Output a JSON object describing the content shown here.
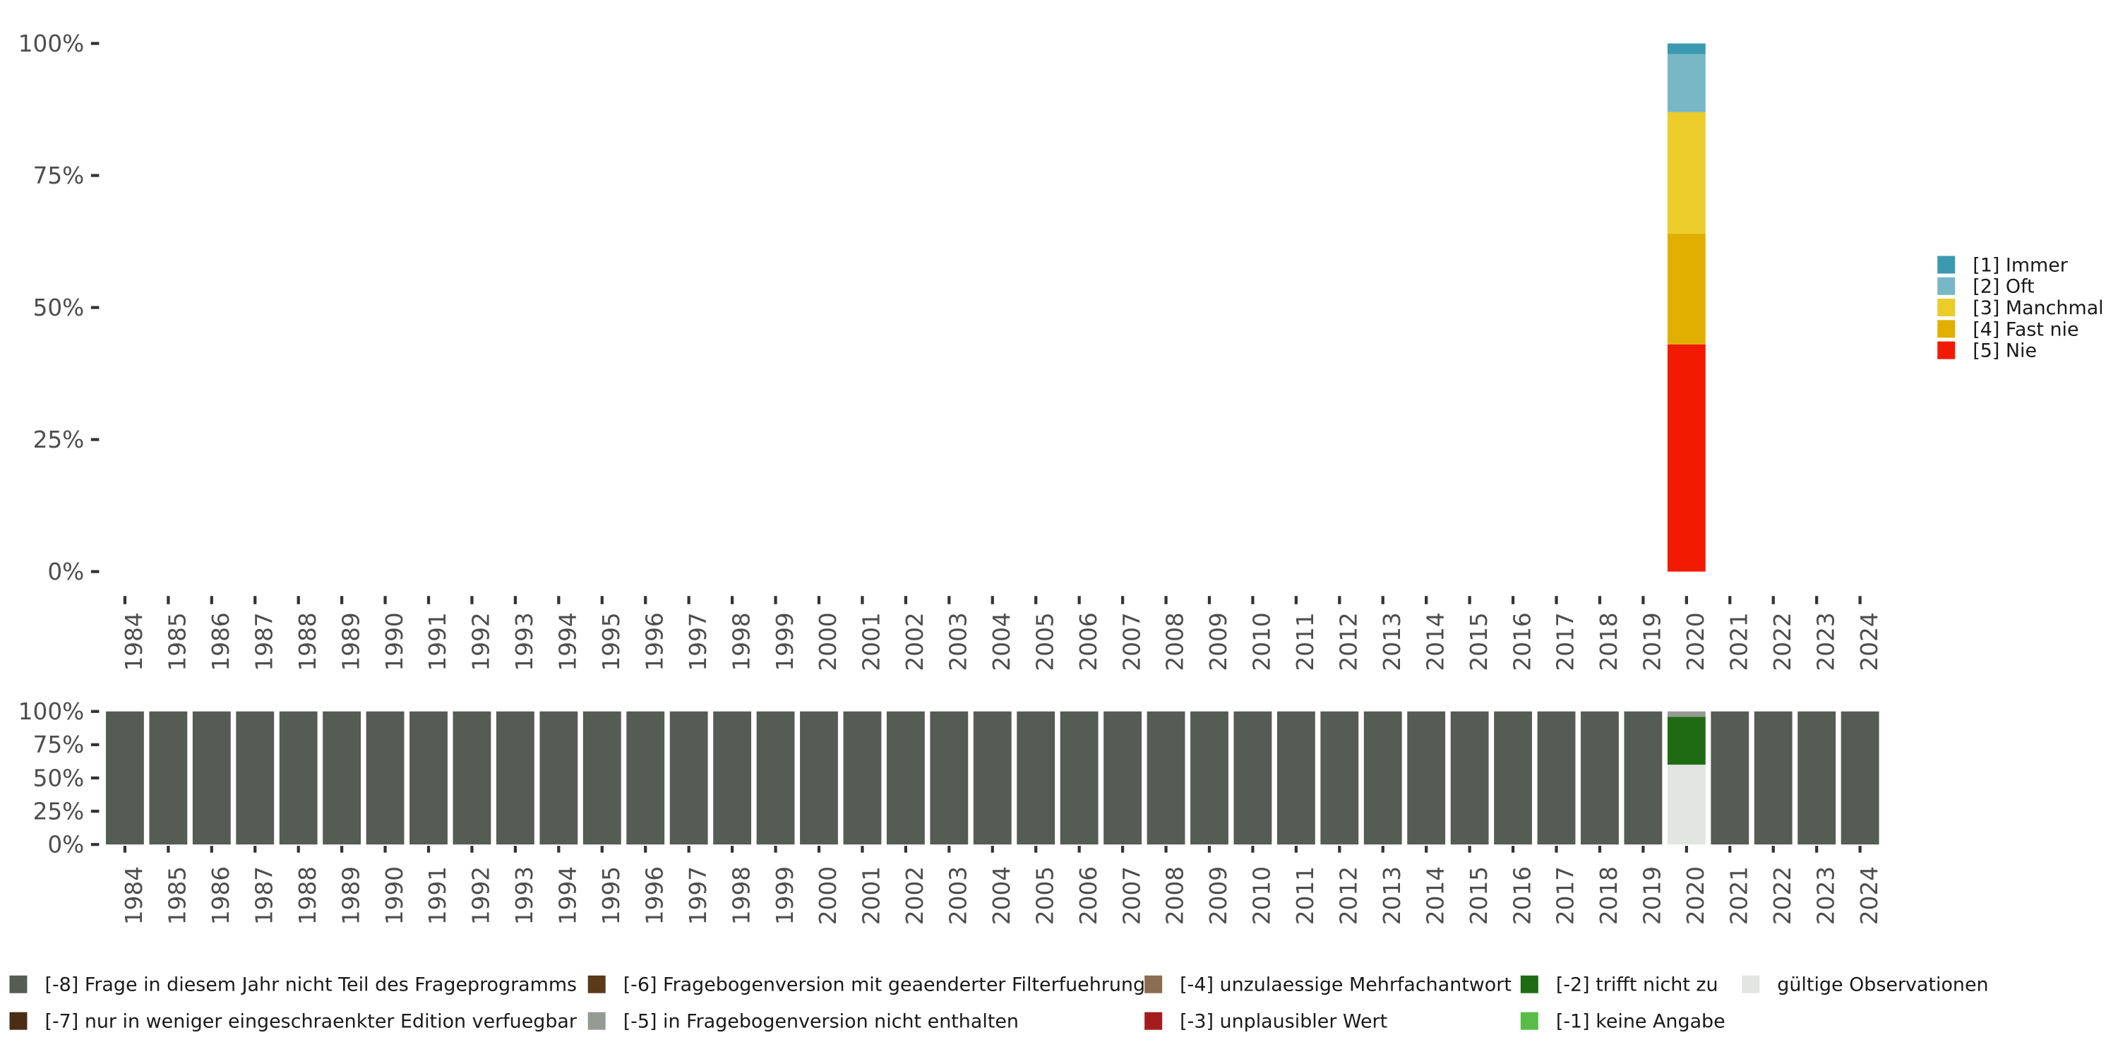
{
  "chart_data": [
    {
      "type": "bar",
      "stacked": true,
      "title": "",
      "xlabel": "",
      "ylabel": "",
      "ylim": [
        0,
        100
      ],
      "y_ticks": [
        0,
        25,
        50,
        75,
        100
      ],
      "y_tick_labels": [
        "0%",
        "25%",
        "50%",
        "75%",
        "100%"
      ],
      "legend_position": "right",
      "categories": [
        "1984",
        "1985",
        "1986",
        "1987",
        "1988",
        "1989",
        "1990",
        "1991",
        "1992",
        "1993",
        "1994",
        "1995",
        "1996",
        "1997",
        "1998",
        "1999",
        "2000",
        "2001",
        "2002",
        "2003",
        "2004",
        "2005",
        "2006",
        "2007",
        "2008",
        "2009",
        "2010",
        "2011",
        "2012",
        "2013",
        "2014",
        "2015",
        "2016",
        "2017",
        "2018",
        "2019",
        "2020",
        "2021",
        "2022",
        "2023",
        "2024"
      ],
      "series": [
        {
          "name": "[1] Immer",
          "color": "#3B9AB2",
          "values": [
            0,
            0,
            0,
            0,
            0,
            0,
            0,
            0,
            0,
            0,
            0,
            0,
            0,
            0,
            0,
            0,
            0,
            0,
            0,
            0,
            0,
            0,
            0,
            0,
            0,
            0,
            0,
            0,
            0,
            0,
            0,
            0,
            0,
            0,
            0,
            0,
            2,
            0,
            0,
            0,
            0
          ]
        },
        {
          "name": "[2] Oft",
          "color": "#78B7C5",
          "values": [
            0,
            0,
            0,
            0,
            0,
            0,
            0,
            0,
            0,
            0,
            0,
            0,
            0,
            0,
            0,
            0,
            0,
            0,
            0,
            0,
            0,
            0,
            0,
            0,
            0,
            0,
            0,
            0,
            0,
            0,
            0,
            0,
            0,
            0,
            0,
            0,
            11,
            0,
            0,
            0,
            0
          ]
        },
        {
          "name": "[3] Manchmal",
          "color": "#EBCC2A",
          "values": [
            0,
            0,
            0,
            0,
            0,
            0,
            0,
            0,
            0,
            0,
            0,
            0,
            0,
            0,
            0,
            0,
            0,
            0,
            0,
            0,
            0,
            0,
            0,
            0,
            0,
            0,
            0,
            0,
            0,
            0,
            0,
            0,
            0,
            0,
            0,
            0,
            23,
            0,
            0,
            0,
            0
          ]
        },
        {
          "name": "[4] Fast nie",
          "color": "#E1AF00",
          "values": [
            0,
            0,
            0,
            0,
            0,
            0,
            0,
            0,
            0,
            0,
            0,
            0,
            0,
            0,
            0,
            0,
            0,
            0,
            0,
            0,
            0,
            0,
            0,
            0,
            0,
            0,
            0,
            0,
            0,
            0,
            0,
            0,
            0,
            0,
            0,
            0,
            21,
            0,
            0,
            0,
            0
          ]
        },
        {
          "name": "[5] Nie",
          "color": "#F21A00",
          "values": [
            0,
            0,
            0,
            0,
            0,
            0,
            0,
            0,
            0,
            0,
            0,
            0,
            0,
            0,
            0,
            0,
            0,
            0,
            0,
            0,
            0,
            0,
            0,
            0,
            0,
            0,
            0,
            0,
            0,
            0,
            0,
            0,
            0,
            0,
            0,
            0,
            43,
            0,
            0,
            0,
            0
          ]
        }
      ]
    },
    {
      "type": "bar",
      "stacked": true,
      "title": "",
      "xlabel": "",
      "ylabel": "",
      "ylim": [
        0,
        100
      ],
      "y_ticks": [
        0,
        25,
        50,
        75,
        100
      ],
      "y_tick_labels": [
        "0%",
        "25%",
        "50%",
        "75%",
        "100%"
      ],
      "legend_position": "bottom",
      "categories": [
        "1984",
        "1985",
        "1986",
        "1987",
        "1988",
        "1989",
        "1990",
        "1991",
        "1992",
        "1993",
        "1994",
        "1995",
        "1996",
        "1997",
        "1998",
        "1999",
        "2000",
        "2001",
        "2002",
        "2003",
        "2004",
        "2005",
        "2006",
        "2007",
        "2008",
        "2009",
        "2010",
        "2011",
        "2012",
        "2013",
        "2014",
        "2015",
        "2016",
        "2017",
        "2018",
        "2019",
        "2020",
        "2021",
        "2022",
        "2023",
        "2024"
      ],
      "series": [
        {
          "name": "[-8] Frage in diesem Jahr nicht Teil des Frageprogramms",
          "color": "#555B55",
          "values": [
            100,
            100,
            100,
            100,
            100,
            100,
            100,
            100,
            100,
            100,
            100,
            100,
            100,
            100,
            100,
            100,
            100,
            100,
            100,
            100,
            100,
            100,
            100,
            100,
            100,
            100,
            100,
            100,
            100,
            100,
            100,
            100,
            100,
            100,
            100,
            100,
            0,
            100,
            100,
            100,
            100
          ]
        },
        {
          "name": "[-7] nur in weniger eingeschraenkter Edition verfuegbar",
          "color": "#4A2E14",
          "values": [
            0,
            0,
            0,
            0,
            0,
            0,
            0,
            0,
            0,
            0,
            0,
            0,
            0,
            0,
            0,
            0,
            0,
            0,
            0,
            0,
            0,
            0,
            0,
            0,
            0,
            0,
            0,
            0,
            0,
            0,
            0,
            0,
            0,
            0,
            0,
            0,
            0,
            0,
            0,
            0,
            0
          ]
        },
        {
          "name": "[-6] Fragebogenversion mit geaenderter Filterfuehrung",
          "color": "#5A3A1A",
          "values": [
            0,
            0,
            0,
            0,
            0,
            0,
            0,
            0,
            0,
            0,
            0,
            0,
            0,
            0,
            0,
            0,
            0,
            0,
            0,
            0,
            0,
            0,
            0,
            0,
            0,
            0,
            0,
            0,
            0,
            0,
            0,
            0,
            0,
            0,
            0,
            0,
            0,
            0,
            0,
            0,
            0
          ]
        },
        {
          "name": "[-5] in Fragebogenversion nicht enthalten",
          "color": "#959A93",
          "values": [
            0,
            0,
            0,
            0,
            0,
            0,
            0,
            0,
            0,
            0,
            0,
            0,
            0,
            0,
            0,
            0,
            0,
            0,
            0,
            0,
            0,
            0,
            0,
            0,
            0,
            0,
            0,
            0,
            0,
            0,
            0,
            0,
            0,
            0,
            0,
            0,
            4,
            0,
            0,
            0,
            0
          ]
        },
        {
          "name": "[-4] unzulaessige Mehrfachantwort",
          "color": "#8A6D52",
          "values": [
            0,
            0,
            0,
            0,
            0,
            0,
            0,
            0,
            0,
            0,
            0,
            0,
            0,
            0,
            0,
            0,
            0,
            0,
            0,
            0,
            0,
            0,
            0,
            0,
            0,
            0,
            0,
            0,
            0,
            0,
            0,
            0,
            0,
            0,
            0,
            0,
            0,
            0,
            0,
            0,
            0
          ]
        },
        {
          "name": "[-3] unplausibler Wert",
          "color": "#A51C1C",
          "values": [
            0,
            0,
            0,
            0,
            0,
            0,
            0,
            0,
            0,
            0,
            0,
            0,
            0,
            0,
            0,
            0,
            0,
            0,
            0,
            0,
            0,
            0,
            0,
            0,
            0,
            0,
            0,
            0,
            0,
            0,
            0,
            0,
            0,
            0,
            0,
            0,
            0,
            0,
            0,
            0,
            0
          ]
        },
        {
          "name": "[-2] trifft nicht zu",
          "color": "#1F6B14",
          "values": [
            0,
            0,
            0,
            0,
            0,
            0,
            0,
            0,
            0,
            0,
            0,
            0,
            0,
            0,
            0,
            0,
            0,
            0,
            0,
            0,
            0,
            0,
            0,
            0,
            0,
            0,
            0,
            0,
            0,
            0,
            0,
            0,
            0,
            0,
            0,
            0,
            36,
            0,
            0,
            0,
            0
          ]
        },
        {
          "name": "[-1] keine Angabe",
          "color": "#57BD47",
          "values": [
            0,
            0,
            0,
            0,
            0,
            0,
            0,
            0,
            0,
            0,
            0,
            0,
            0,
            0,
            0,
            0,
            0,
            0,
            0,
            0,
            0,
            0,
            0,
            0,
            0,
            0,
            0,
            0,
            0,
            0,
            0,
            0,
            0,
            0,
            0,
            0,
            0,
            0,
            0,
            0,
            0
          ]
        },
        {
          "name": "gültige Observationen",
          "color": "#E2E5E1",
          "values": [
            0,
            0,
            0,
            0,
            0,
            0,
            0,
            0,
            0,
            0,
            0,
            0,
            0,
            0,
            0,
            0,
            0,
            0,
            0,
            0,
            0,
            0,
            0,
            0,
            0,
            0,
            0,
            0,
            0,
            0,
            0,
            0,
            0,
            0,
            0,
            0,
            60,
            0,
            0,
            0,
            0
          ]
        }
      ]
    }
  ]
}
